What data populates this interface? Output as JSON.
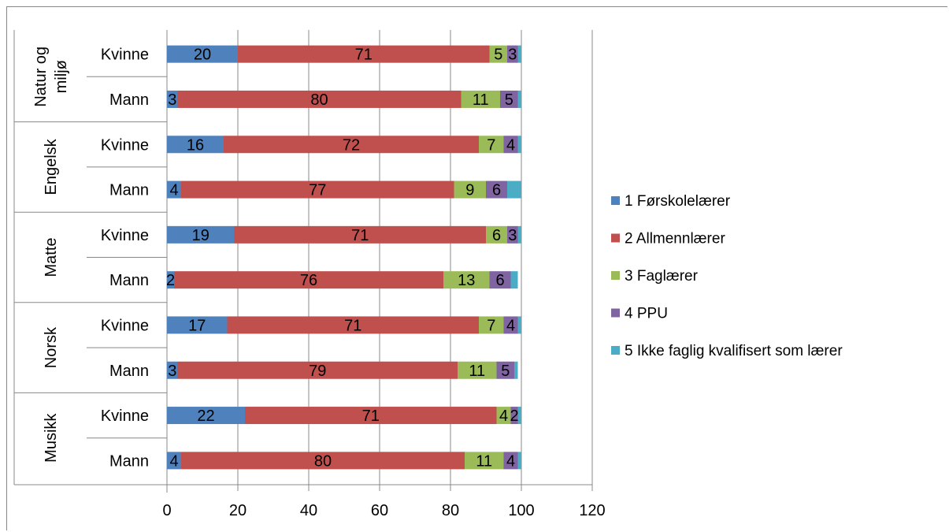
{
  "chart_data": {
    "type": "bar",
    "orientation": "horizontal",
    "stacked": true,
    "xlim": [
      0,
      120
    ],
    "x_ticks": [
      "0",
      "20",
      "40",
      "60",
      "80",
      "100",
      "120"
    ],
    "grid": true,
    "legend_position": "right",
    "groups": [
      {
        "name": "Natur og\nmiljø",
        "categories": [
          "Kvinne",
          "Mann"
        ]
      },
      {
        "name": "Engelsk",
        "categories": [
          "Kvinne",
          "Mann"
        ]
      },
      {
        "name": "Matte",
        "categories": [
          "Kvinne",
          "Mann"
        ]
      },
      {
        "name": "Norsk",
        "categories": [
          "Kvinne",
          "Mann"
        ]
      },
      {
        "name": "Musikk",
        "categories": [
          "Kvinne",
          "Mann"
        ]
      }
    ],
    "series": [
      {
        "name": "1 Førskolelærer",
        "color": "#4F81BD",
        "values": [
          20,
          3,
          16,
          4,
          19,
          2,
          17,
          3,
          22,
          4
        ],
        "labels": [
          "20",
          "3",
          "16",
          "4",
          "19",
          "2",
          "17",
          "3",
          "22",
          "4"
        ]
      },
      {
        "name": "2 Allmennlærer",
        "color": "#C0504D",
        "values": [
          71,
          80,
          72,
          77,
          71,
          76,
          71,
          79,
          71,
          80
        ],
        "labels": [
          "71",
          "80",
          "72",
          "77",
          "71",
          "76",
          "71",
          "79",
          "71",
          "80"
        ]
      },
      {
        "name": "3 Faglærer",
        "color": "#9BBB59",
        "values": [
          5,
          11,
          7,
          9,
          6,
          13,
          7,
          11,
          4,
          11
        ],
        "labels": [
          "5",
          "11",
          "7",
          "9",
          "6",
          "13",
          "7",
          "11",
          "4",
          "11"
        ]
      },
      {
        "name": "4 PPU",
        "color": "#8064A2",
        "values": [
          3,
          5,
          4,
          6,
          3,
          6,
          4,
          5,
          2,
          4
        ],
        "labels": [
          "3",
          "5",
          "4",
          "6",
          "3",
          "6",
          "4",
          "5",
          "2",
          "4"
        ]
      },
      {
        "name": "5 Ikke faglig kvalifisert som lærer",
        "color": "#4BACC6",
        "values": [
          1,
          1,
          1,
          4,
          1,
          2,
          1,
          1,
          1,
          1
        ],
        "labels": [
          "",
          "",
          "",
          "",
          "",
          "",
          "",
          "",
          "",
          ""
        ]
      }
    ]
  }
}
